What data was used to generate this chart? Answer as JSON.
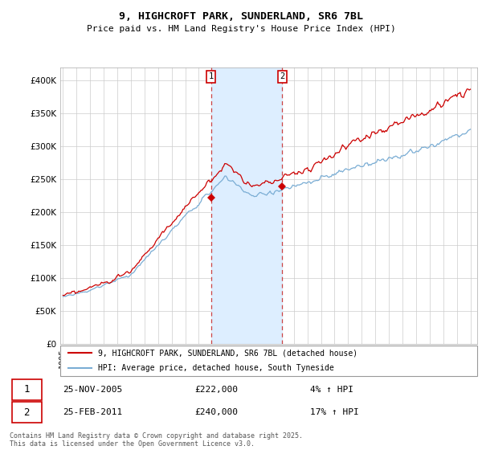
{
  "title_line1": "9, HIGHCROFT PARK, SUNDERLAND, SR6 7BL",
  "title_line2": "Price paid vs. HM Land Registry's House Price Index (HPI)",
  "ylim": [
    0,
    420000
  ],
  "yticks": [
    0,
    50000,
    100000,
    150000,
    200000,
    250000,
    300000,
    350000,
    400000
  ],
  "ytick_labels": [
    "£0",
    "£50K",
    "£100K",
    "£150K",
    "£200K",
    "£250K",
    "£300K",
    "£350K",
    "£400K"
  ],
  "legend_line1": "9, HIGHCROFT PARK, SUNDERLAND, SR6 7BL (detached house)",
  "legend_line2": "HPI: Average price, detached house, South Tyneside",
  "transaction1_date": "25-NOV-2005",
  "transaction1_price": "£222,000",
  "transaction1_hpi": "4% ↑ HPI",
  "transaction2_date": "25-FEB-2011",
  "transaction2_price": "£240,000",
  "transaction2_hpi": "17% ↑ HPI",
  "footer": "Contains HM Land Registry data © Crown copyright and database right 2025.\nThis data is licensed under the Open Government Licence v3.0.",
  "hpi_color": "#7aadd4",
  "price_color": "#cc0000",
  "shade_color": "#ddeeff",
  "vline1_x": 2005.9,
  "vline2_x": 2011.15,
  "marker1_x": 2005.9,
  "marker1_y": 222000,
  "marker2_x": 2011.15,
  "marker2_y": 240000,
  "xlim_left": 1994.8,
  "xlim_right": 2025.5
}
